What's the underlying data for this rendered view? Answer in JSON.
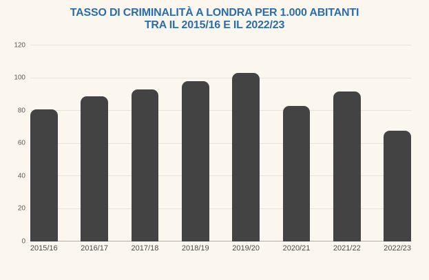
{
  "page": {
    "background_color": "#fcf7ee",
    "title_color": "#2b6cad",
    "title_line1": "TASSO DI CRIMINALITÀ A LONDRA PER 1.000 ABITANTI",
    "title_line2": "TRA IL 2015/16 E IL 2022/23"
  },
  "chart_data": {
    "type": "bar",
    "title": "TASSO DI CRIMINALITÀ A LONDRA PER 1.000 ABITANTI TRA IL 2015/16 E IL 2022/23",
    "categories": [
      "2015/16",
      "2016/17",
      "2017/18",
      "2018/19",
      "2019/20",
      "2020/21",
      "2021/22",
      "2022/23"
    ],
    "values": [
      81,
      89,
      93,
      98,
      103,
      83,
      92,
      68
    ],
    "xlabel": "",
    "ylabel": "",
    "ylim": [
      0,
      120
    ],
    "yticks": [
      0,
      20,
      40,
      60,
      80,
      100,
      120
    ],
    "grid": true,
    "legend": false,
    "bar_color": "#434343",
    "gridline_color": "#e9e4d9",
    "baseline_color": "#b3afa6",
    "ytick_label_color": "#5d5952",
    "xtick_label_color": "#4c4943"
  }
}
